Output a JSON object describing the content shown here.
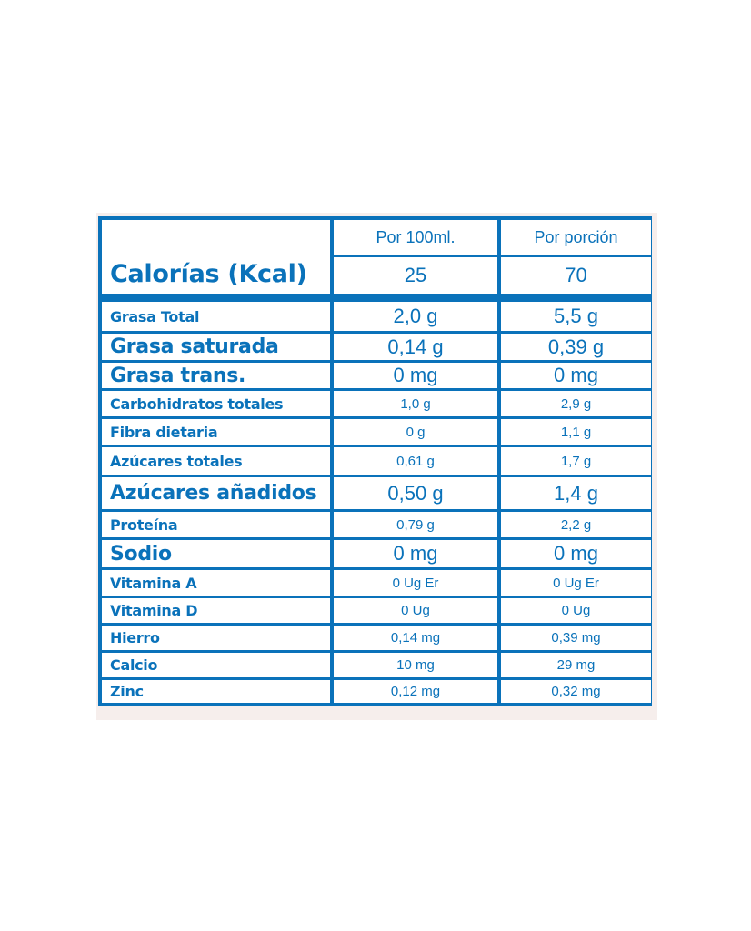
{
  "colors": {
    "accent": "#0a72ba",
    "panel": "#f6eeec"
  },
  "header": {
    "col1": "Por 100ml.",
    "col2": "Por porción"
  },
  "calories": {
    "label": "Calorías (Kcal)",
    "per100": "25",
    "perPortion": "70"
  },
  "rows": [
    {
      "label": "Grasa Total",
      "per100": "2,0 g",
      "perPortion": "5,5 g",
      "labelSize": "medium",
      "valueSize": "big"
    },
    {
      "label": "Grasa saturada",
      "per100": "0,14 g",
      "perPortion": "0,39 g",
      "labelSize": "big",
      "valueSize": "big"
    },
    {
      "label": "Grasa trans.",
      "per100": "0 mg",
      "perPortion": "0 mg",
      "labelSize": "big",
      "valueSize": "big"
    },
    {
      "label": "Carbohidratos totales",
      "per100": "1,0 g",
      "perPortion": "2,9 g",
      "labelSize": "small",
      "valueSize": "small"
    },
    {
      "label": "Fibra dietaria",
      "per100": "0 g",
      "perPortion": "1,1 g",
      "labelSize": "small",
      "valueSize": "small"
    },
    {
      "label": "Azúcares totales",
      "per100": "0,61 g",
      "perPortion": "1,7 g",
      "labelSize": "small",
      "valueSize": "small"
    },
    {
      "label": "Azúcares añadidos",
      "per100": "0,50 g",
      "perPortion": "1,4 g",
      "labelSize": "big",
      "valueSize": "big"
    },
    {
      "label": "Proteína",
      "per100": "0,79 g",
      "perPortion": "2,2 g",
      "labelSize": "small",
      "valueSize": "small"
    },
    {
      "label": "Sodio",
      "per100": "0 mg",
      "perPortion": "0 mg",
      "labelSize": "big",
      "valueSize": "big"
    },
    {
      "label": "Vitamina A",
      "per100": "0 Ug Er",
      "perPortion": "0 Ug Er",
      "labelSize": "small",
      "valueSize": "small"
    },
    {
      "label": "Vitamina D",
      "per100": "0 Ug",
      "perPortion": "0 Ug",
      "labelSize": "small",
      "valueSize": "small"
    },
    {
      "label": "Hierro",
      "per100": "0,14 mg",
      "perPortion": "0,39 mg",
      "labelSize": "small",
      "valueSize": "small"
    },
    {
      "label": "Calcio",
      "per100": "10 mg",
      "perPortion": "29 mg",
      "labelSize": "small",
      "valueSize": "small"
    },
    {
      "label": "Zinc",
      "per100": "0,12 mg",
      "perPortion": "0,32 mg",
      "labelSize": "small",
      "valueSize": "small"
    }
  ]
}
